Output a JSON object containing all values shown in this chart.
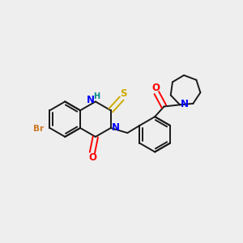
{
  "background_color": "#eeeeee",
  "bond_color": "#1a1a1a",
  "N_color": "#0000ff",
  "O_color": "#ff0000",
  "S_color": "#ccaa00",
  "Br_color": "#cc7722",
  "H_color": "#008888",
  "lw": 1.4,
  "BL": 0.38,
  "xlim": [
    -2.3,
    2.9
  ],
  "ylim": [
    -1.7,
    1.7
  ]
}
